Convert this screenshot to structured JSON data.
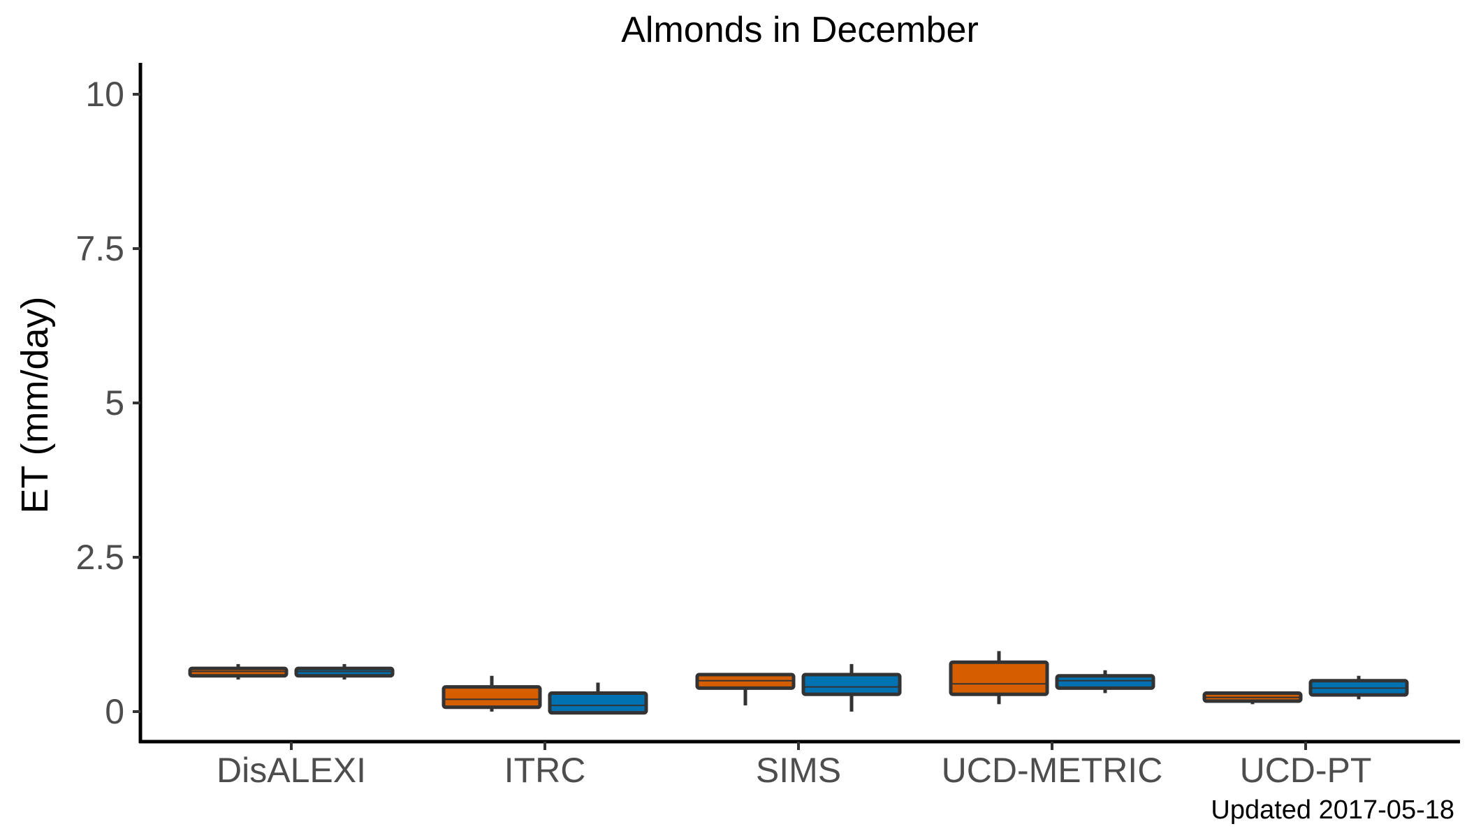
{
  "chart_data": {
    "type": "boxplot",
    "title": "Almonds in December",
    "xlabel": "",
    "ylabel": "ET (mm/day)",
    "categories": [
      "DisALEXI",
      "ITRC",
      "SIMS",
      "UCD-METRIC",
      "UCD-PT"
    ],
    "yticks": [
      "0",
      "2.5",
      "5",
      "7.5",
      "10"
    ],
    "ytick_values": [
      0,
      2.5,
      5,
      7.5,
      10
    ],
    "ylim": [
      -0.5,
      10.5
    ],
    "grid": false,
    "legend": "none",
    "series": [
      {
        "color": "#d55e00",
        "boxes": [
          {
            "min": 0.52,
            "q1": 0.58,
            "median": 0.65,
            "q3": 0.7,
            "max": 0.77
          },
          {
            "min": 0.0,
            "q1": 0.07,
            "median": 0.2,
            "q3": 0.4,
            "max": 0.58
          },
          {
            "min": 0.1,
            "q1": 0.38,
            "median": 0.5,
            "q3": 0.6,
            "max": 0.62
          },
          {
            "min": 0.12,
            "q1": 0.28,
            "median": 0.45,
            "q3": 0.8,
            "max": 0.98
          },
          {
            "min": 0.12,
            "q1": 0.17,
            "median": 0.23,
            "q3": 0.3,
            "max": 0.32
          }
        ]
      },
      {
        "color": "#0072b2",
        "boxes": [
          {
            "min": 0.52,
            "q1": 0.58,
            "median": 0.65,
            "q3": 0.7,
            "max": 0.77
          },
          {
            "min": -0.02,
            "q1": -0.02,
            "median": 0.1,
            "q3": 0.3,
            "max": 0.47
          },
          {
            "min": 0.0,
            "q1": 0.28,
            "median": 0.4,
            "q3": 0.6,
            "max": 0.77
          },
          {
            "min": 0.3,
            "q1": 0.38,
            "median": 0.5,
            "q3": 0.58,
            "max": 0.67
          },
          {
            "min": 0.2,
            "q1": 0.27,
            "median": 0.38,
            "q3": 0.5,
            "max": 0.58
          }
        ]
      }
    ]
  },
  "caption": "Updated  2017-05-18"
}
